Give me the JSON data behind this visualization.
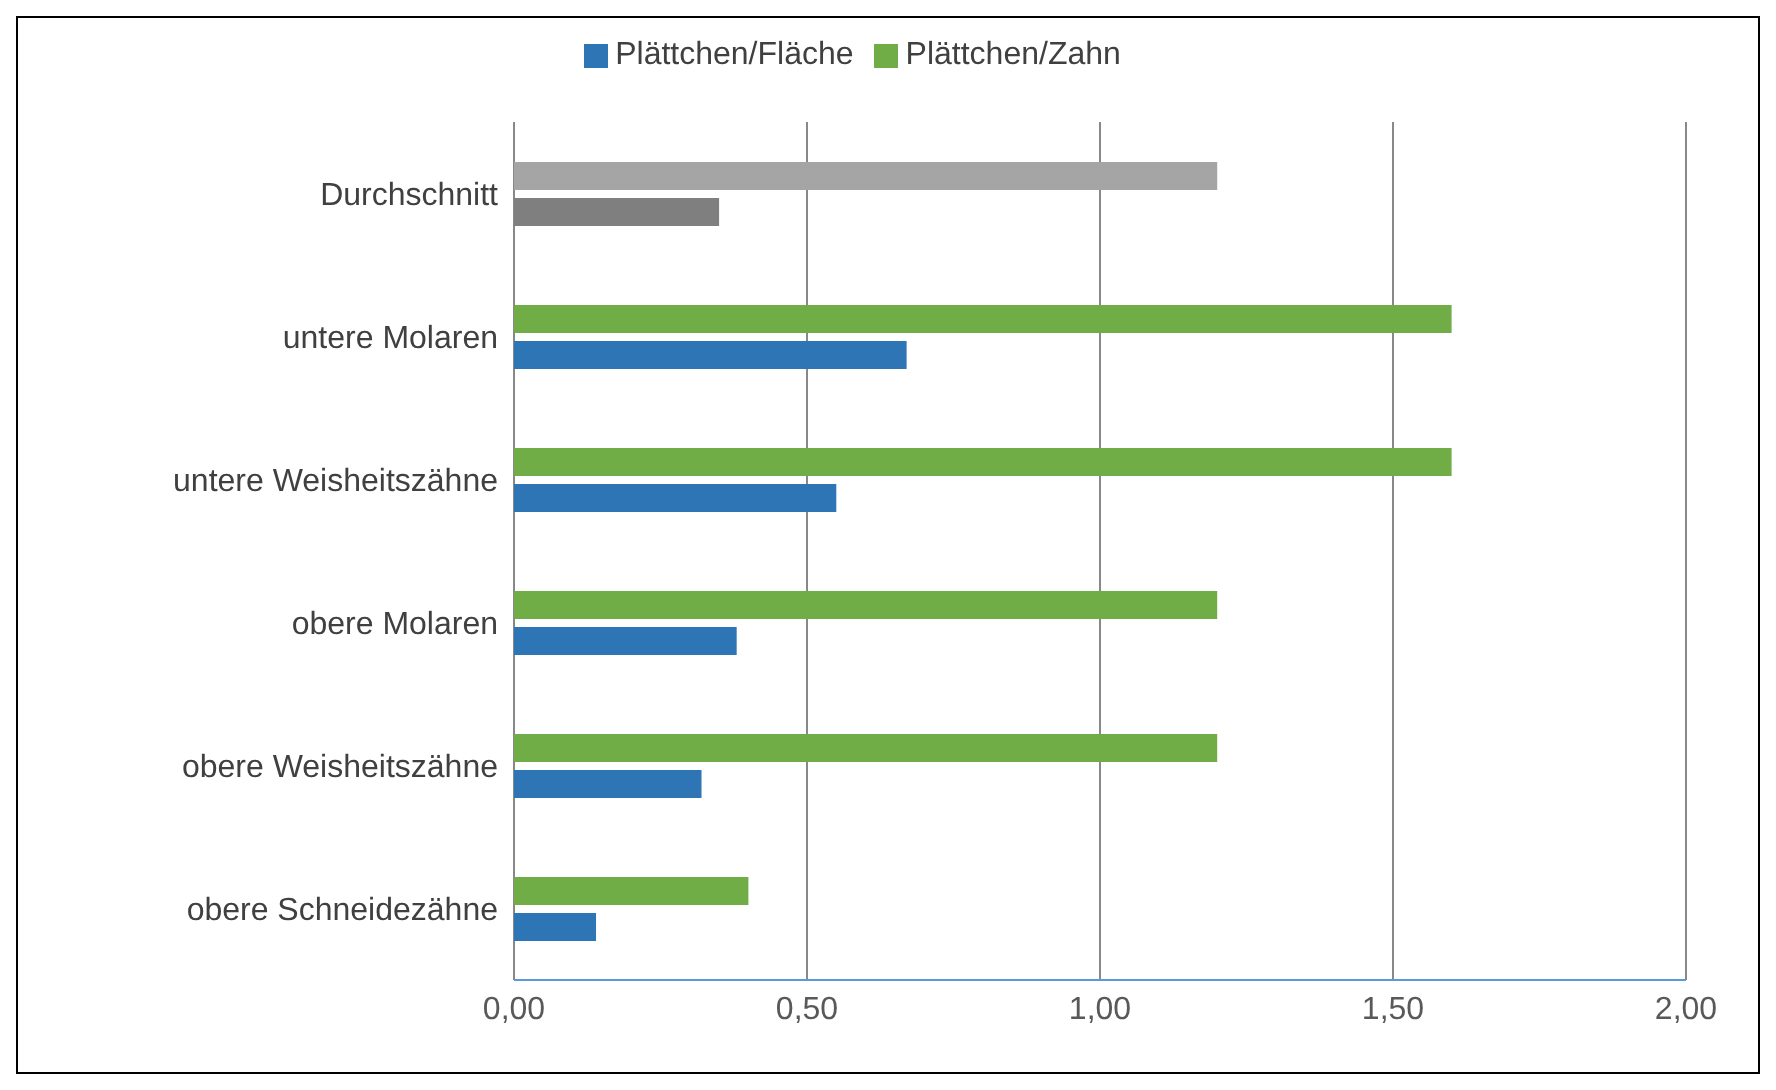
{
  "chart_data": {
    "type": "bar",
    "orientation": "horizontal",
    "categories": [
      "Durchschnitt",
      "untere Molaren",
      "untere Weisheitszähne",
      "obere Molaren",
      "obere Weisheitszähne",
      "obere Schneidezähne"
    ],
    "series": [
      {
        "name": "Plättchen/Zahn",
        "color": "#70ad47",
        "colors": [
          "#a5a5a5",
          "#70ad47",
          "#70ad47",
          "#70ad47",
          "#70ad47",
          "#70ad47"
        ],
        "values": [
          1.2,
          1.6,
          1.6,
          1.2,
          1.2,
          0.4
        ]
      },
      {
        "name": "Plättchen/Fläche",
        "color": "#2e75b6",
        "colors": [
          "#7f7f7f",
          "#2e75b6",
          "#2e75b6",
          "#2e75b6",
          "#2e75b6",
          "#2e75b6"
        ],
        "values": [
          0.35,
          0.67,
          0.55,
          0.38,
          0.32,
          0.14
        ]
      }
    ],
    "xlim": [
      0,
      2
    ],
    "xticks": [
      {
        "value": 0,
        "label": "0,00"
      },
      {
        "value": 0.5,
        "label": "0,50"
      },
      {
        "value": 1,
        "label": "1,00"
      },
      {
        "value": 1.5,
        "label": "1,50"
      },
      {
        "value": 2,
        "label": "2,00"
      }
    ],
    "grid": "x",
    "legend": "top"
  }
}
